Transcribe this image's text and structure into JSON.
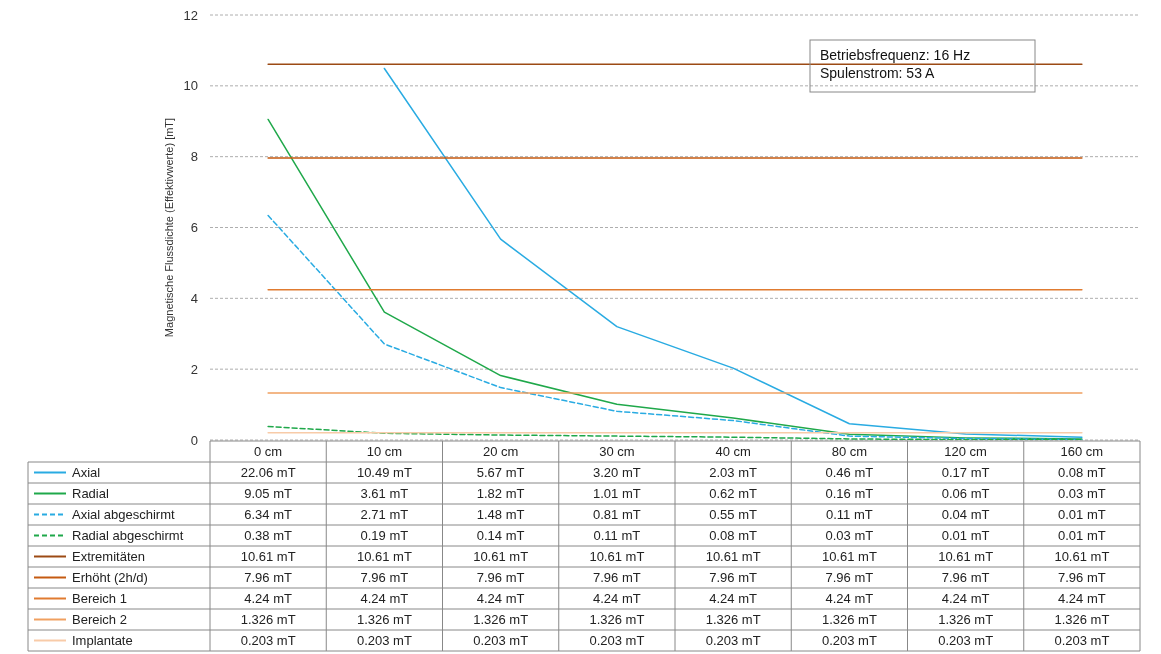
{
  "chart_data": {
    "type": "line",
    "ylabel": "Magnetische Flussdichte (Effektivwerte) [mT]",
    "categories": [
      "0 cm",
      "10 cm",
      "20 cm",
      "30 cm",
      "40 cm",
      "80 cm",
      "120 cm",
      "160 cm"
    ],
    "ylim": [
      0,
      12
    ],
    "yticks": [
      0,
      2,
      4,
      6,
      8,
      10,
      12
    ],
    "grid": "y",
    "legend": "bottom",
    "data_labels": true,
    "annotations": [
      "Betriebsfrequenz: 16 Hz",
      "Spulenstrom: 53 A"
    ],
    "series": [
      {
        "name": "Axial",
        "color": "#29abe2",
        "line_style": "solid",
        "values": [
          null,
          10.49,
          5.67,
          3.2,
          2.03,
          0.46,
          0.17,
          0.08
        ],
        "value_labels": [
          "22.06 mT",
          "10.49 mT",
          "5.67 mT",
          "3.20 mT",
          "2.03 mT",
          "0.46 mT",
          "0.17 mT",
          "0.08 mT"
        ]
      },
      {
        "name": "Radial",
        "color": "#1fa84a",
        "line_style": "solid",
        "values": [
          9.05,
          3.61,
          1.82,
          1.01,
          0.62,
          0.16,
          0.06,
          0.03
        ],
        "value_labels": [
          "9.05 mT",
          "3.61 mT",
          "1.82 mT",
          "1.01 mT",
          "0.62 mT",
          "0.16 mT",
          "0.06 mT",
          "0.03 mT"
        ]
      },
      {
        "name": "Axial abgeschirmt",
        "color": "#29abe2",
        "line_style": "dashed",
        "values": [
          6.34,
          2.71,
          1.48,
          0.81,
          0.55,
          0.11,
          0.04,
          0.01
        ],
        "value_labels": [
          "6.34 mT",
          "2.71 mT",
          "1.48 mT",
          "0.81 mT",
          "0.55 mT",
          "0.11 mT",
          "0.04 mT",
          "0.01 mT"
        ]
      },
      {
        "name": "Radial abgeschirmt",
        "color": "#1fa84a",
        "line_style": "dashed",
        "values": [
          0.38,
          0.19,
          0.14,
          0.11,
          0.08,
          0.03,
          0.01,
          0.01
        ],
        "value_labels": [
          "0.38 mT",
          "0.19 mT",
          "0.14 mT",
          "0.11 mT",
          "0.08 mT",
          "0.03 mT",
          "0.01 mT",
          "0.01 mT"
        ]
      },
      {
        "name": "Extremitäten",
        "color": "#9c4a14",
        "line_style": "solid",
        "values": [
          10.61,
          10.61,
          10.61,
          10.61,
          10.61,
          10.61,
          10.61,
          10.61
        ],
        "value_labels": [
          "10.61 mT",
          "10.61 mT",
          "10.61 mT",
          "10.61 mT",
          "10.61 mT",
          "10.61 mT",
          "10.61 mT",
          "10.61 mT"
        ]
      },
      {
        "name": "Erhöht (2h/d)",
        "color": "#c55a11",
        "line_style": "solid",
        "values": [
          7.96,
          7.96,
          7.96,
          7.96,
          7.96,
          7.96,
          7.96,
          7.96
        ],
        "value_labels": [
          "7.96 mT",
          "7.96 mT",
          "7.96 mT",
          "7.96 mT",
          "7.96 mT",
          "7.96 mT",
          "7.96 mT",
          "7.96 mT"
        ]
      },
      {
        "name": "Bereich 1",
        "color": "#e07b30",
        "line_style": "solid",
        "values": [
          4.24,
          4.24,
          4.24,
          4.24,
          4.24,
          4.24,
          4.24,
          4.24
        ],
        "value_labels": [
          "4.24 mT",
          "4.24 mT",
          "4.24 mT",
          "4.24 mT",
          "4.24 mT",
          "4.24 mT",
          "4.24 mT",
          "4.24 mT"
        ]
      },
      {
        "name": "Bereich 2",
        "color": "#f0a060",
        "line_style": "solid",
        "values": [
          1.326,
          1.326,
          1.326,
          1.326,
          1.326,
          1.326,
          1.326,
          1.326
        ],
        "value_labels": [
          "1.326 mT",
          "1.326 mT",
          "1.326 mT",
          "1.326 mT",
          "1.326 mT",
          "1.326 mT",
          "1.326 mT",
          "1.326 mT"
        ]
      },
      {
        "name": "Implantate",
        "color": "#f8cba8",
        "line_style": "solid",
        "values": [
          0.203,
          0.203,
          0.203,
          0.203,
          0.203,
          0.203,
          0.203,
          0.203
        ],
        "value_labels": [
          "0.203 mT",
          "0.203 mT",
          "0.203 mT",
          "0.203 mT",
          "0.203 mT",
          "0.203 mT",
          "0.203 mT",
          "0.203 mT"
        ]
      }
    ]
  }
}
